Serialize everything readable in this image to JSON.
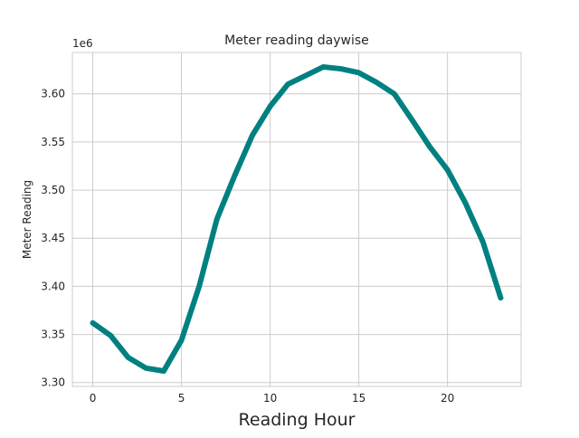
{
  "chart_data": {
    "type": "line",
    "title": "Meter reading daywise",
    "xlabel": "Reading Hour",
    "ylabel": "Meter Reading",
    "y_offset_label": "1e6",
    "x": [
      0,
      1,
      2,
      3,
      4,
      5,
      6,
      7,
      8,
      9,
      10,
      11,
      12,
      13,
      14,
      15,
      16,
      17,
      18,
      19,
      20,
      21,
      22,
      23
    ],
    "series": [
      {
        "values": [
          3.362,
          3.349,
          3.326,
          3.315,
          3.312,
          3.344,
          3.4,
          3.47,
          3.515,
          3.557,
          3.587,
          3.61,
          3.619,
          3.628,
          3.626,
          3.622,
          3.612,
          3.6,
          3.573,
          3.545,
          3.521,
          3.487,
          3.446,
          3.388
        ],
        "color": "#008080"
      }
    ],
    "xlim": [
      -1.15,
      24.15
    ],
    "ylim": [
      3.296,
      3.643
    ],
    "x_ticks": [
      0,
      5,
      10,
      15,
      20
    ],
    "x_tick_labels": [
      "0",
      "5",
      "10",
      "15",
      "20"
    ],
    "y_ticks": [
      3.3,
      3.35,
      3.4,
      3.45,
      3.5,
      3.55,
      3.6
    ],
    "y_tick_labels": [
      "3.30",
      "3.35",
      "3.40",
      "3.45",
      "3.50",
      "3.55",
      "3.60"
    ],
    "grid": true,
    "style": {
      "grid_color": "#cccccc",
      "spine_color": "#cccccc",
      "text_color": "#262626"
    }
  }
}
